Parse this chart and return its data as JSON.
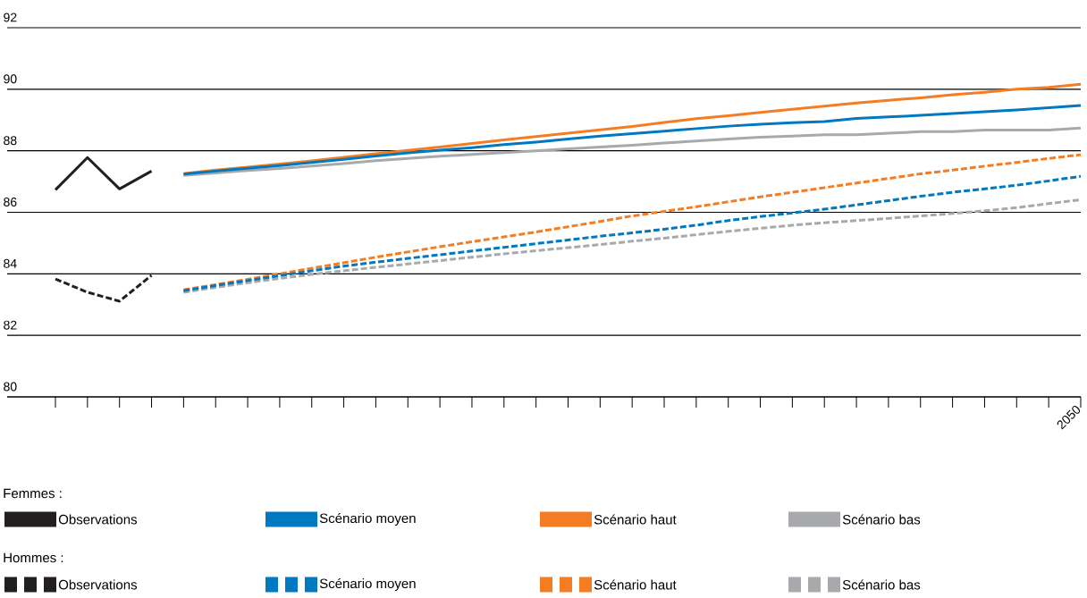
{
  "chart_data": {
    "type": "line",
    "categories": [
      null,
      null,
      null,
      null,
      null,
      null,
      null,
      null,
      null,
      null,
      null,
      null,
      null,
      null,
      null,
      null,
      null,
      null,
      null,
      null,
      null,
      null,
      null,
      null,
      null,
      null,
      null,
      null,
      null,
      null,
      null,
      null,
      "2050"
    ],
    "ylim": [
      80,
      92
    ],
    "yticks": [
      80,
      82,
      84,
      86,
      88,
      90,
      92
    ],
    "grid": "y",
    "legend": "bottom",
    "annotations": [
      "Femmes :",
      "Hommes :"
    ],
    "series": [
      {
        "name": "Observations",
        "color": "#231f20",
        "line_style": "solid",
        "values": [
          86.73,
          87.78,
          86.76,
          87.34,
          null,
          null,
          null,
          null,
          null,
          null,
          null,
          null,
          null,
          null,
          null,
          null,
          null,
          null,
          null,
          null,
          null,
          null,
          null,
          null,
          null,
          null,
          null,
          null,
          null,
          null,
          null,
          null,
          null
        ]
      },
      {
        "name": "Scénario moyen",
        "color": "#0079c1",
        "line_style": "solid",
        "values": [
          null,
          null,
          null,
          null,
          87.24,
          87.34,
          87.43,
          87.52,
          87.62,
          87.72,
          87.83,
          87.93,
          88.02,
          88.1,
          88.2,
          88.28,
          88.38,
          88.48,
          88.56,
          88.64,
          88.72,
          88.8,
          88.86,
          88.91,
          88.95,
          89.05,
          89.1,
          89.15,
          89.21,
          89.27,
          89.33,
          89.4,
          89.47
        ]
      },
      {
        "name": "Scénario haut",
        "color": "#f47d23",
        "line_style": "solid",
        "values": [
          null,
          null,
          null,
          null,
          87.26,
          87.37,
          87.47,
          87.57,
          87.67,
          87.79,
          87.9,
          88.01,
          88.12,
          88.24,
          88.35,
          88.46,
          88.57,
          88.68,
          88.79,
          88.92,
          89.04,
          89.14,
          89.25,
          89.35,
          89.45,
          89.55,
          89.64,
          89.72,
          89.82,
          89.9,
          90.0,
          90.06,
          90.16
        ]
      },
      {
        "name": "Scénario bas",
        "color": "#a7a9ac",
        "line_style": "solid",
        "values": [
          null,
          null,
          null,
          null,
          87.2,
          87.28,
          87.36,
          87.42,
          87.5,
          87.58,
          87.68,
          87.75,
          87.82,
          87.88,
          87.94,
          88.0,
          88.06,
          88.12,
          88.18,
          88.25,
          88.32,
          88.38,
          88.44,
          88.48,
          88.52,
          88.52,
          88.57,
          88.62,
          88.62,
          88.67,
          88.67,
          88.67,
          88.74
        ]
      },
      {
        "name": "Observations",
        "color": "#231f20",
        "line_style": "dashed",
        "values": [
          83.83,
          83.4,
          83.11,
          83.95,
          null,
          null,
          null,
          null,
          null,
          null,
          null,
          null,
          null,
          null,
          null,
          null,
          null,
          null,
          null,
          null,
          null,
          null,
          null,
          null,
          null,
          null,
          null,
          null,
          null,
          null,
          null,
          null,
          null
        ]
      },
      {
        "name": "Scénario moyen",
        "color": "#0079c1",
        "line_style": "dashed",
        "values": [
          null,
          null,
          null,
          null,
          83.45,
          83.62,
          83.78,
          83.94,
          84.1,
          84.25,
          84.38,
          84.5,
          84.62,
          84.74,
          84.86,
          84.98,
          85.1,
          85.22,
          85.33,
          85.45,
          85.58,
          85.73,
          85.86,
          85.98,
          86.1,
          86.24,
          86.38,
          86.52,
          86.65,
          86.76,
          86.88,
          87.02,
          87.17
        ]
      },
      {
        "name": "Scénario haut",
        "color": "#f47d23",
        "line_style": "dashed",
        "values": [
          null,
          null,
          null,
          null,
          83.48,
          83.65,
          83.82,
          84.0,
          84.18,
          84.36,
          84.54,
          84.71,
          84.88,
          85.04,
          85.2,
          85.36,
          85.53,
          85.7,
          85.88,
          86.03,
          86.18,
          86.34,
          86.5,
          86.65,
          86.8,
          86.95,
          87.1,
          87.25,
          87.37,
          87.5,
          87.62,
          87.75,
          87.87
        ]
      },
      {
        "name": "Scénario bas",
        "color": "#a7a9ac",
        "line_style": "dashed",
        "values": [
          null,
          null,
          null,
          null,
          83.4,
          83.56,
          83.71,
          83.85,
          83.98,
          84.1,
          84.21,
          84.32,
          84.43,
          84.54,
          84.65,
          84.75,
          84.85,
          84.95,
          85.06,
          85.16,
          85.27,
          85.38,
          85.48,
          85.58,
          85.66,
          85.73,
          85.8,
          85.88,
          85.96,
          86.05,
          86.15,
          86.28,
          86.41
        ]
      }
    ]
  }
}
